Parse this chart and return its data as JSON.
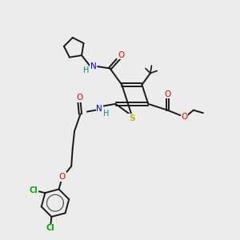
{
  "bg_color": "#ececec",
  "bond_color": "#1a1a1a",
  "atom_colors": {
    "S": "#b8b800",
    "N": "#0000ee",
    "O": "#ee0000",
    "Cl": "#00aa00",
    "H": "#008888",
    "C": "#1a1a1a"
  },
  "figsize": [
    3.0,
    3.0
  ],
  "dpi": 100
}
